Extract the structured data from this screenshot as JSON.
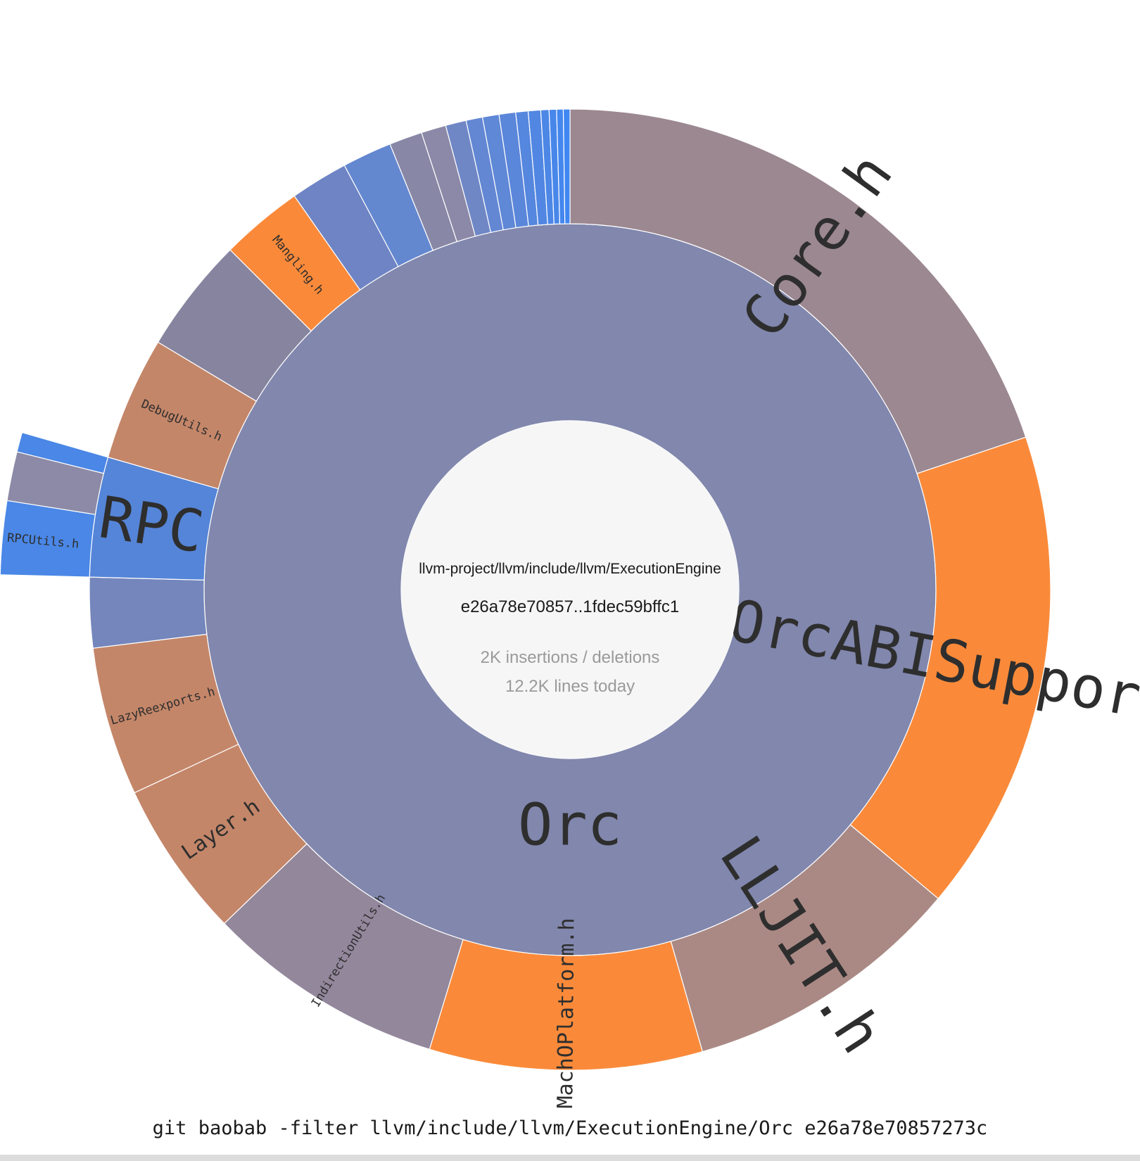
{
  "center": {
    "path": "llvm-project/llvm/include/llvm/ExecutionEngine",
    "range": "e26a78e70857..1fdec59bffc1",
    "stat_changes": "2K insertions / deletions",
    "stat_lines": "12.2K lines today"
  },
  "footer": {
    "command": "git baobab -filter llvm/include/llvm/ExecutionEngine/Orc e26a78e70857273c"
  },
  "colors": {
    "center_bg": "#f6f6f6",
    "orc": "#8187ad",
    "core": "#9c8891",
    "orange": "#fa8a3a",
    "lljit": "#aa8985",
    "indirection": "#93879c",
    "brown": "#c48669",
    "slate": "#7486bc",
    "blue_mid": "#6488d0",
    "blue_bright": "#4a87e6",
    "gray_purple": "#8c8aa6"
  },
  "chart_data": {
    "type": "sunburst",
    "root": "llvm-project/llvm/include/llvm/ExecutionEngine",
    "rings": [
      {
        "level": 1,
        "segments": [
          {
            "name": "Orc",
            "label": "Orc",
            "start_deg": 0,
            "end_deg": 360,
            "color": "#8187ad",
            "label_at_deg": 180
          }
        ]
      },
      {
        "level": 2,
        "segments": [
          {
            "name": "Core.h",
            "label": "Core.h",
            "start_deg": 0,
            "end_deg": 71.5,
            "color": "#9c8891"
          },
          {
            "name": "OrcABISupport.h",
            "label": "OrcABISupport.h",
            "start_deg": 71.5,
            "end_deg": 130,
            "color": "#fa8a3a"
          },
          {
            "name": "LLJIT.h",
            "label": "LLJIT.h",
            "start_deg": 130,
            "end_deg": 164,
            "color": "#aa8985"
          },
          {
            "name": "MachOPlatform.h",
            "label": "MachOPlatform.h",
            "start_deg": 164,
            "end_deg": 197,
            "color": "#fa8a3a"
          },
          {
            "name": "IndirectionUtils.h",
            "label": "IndirectionUtils.h",
            "start_deg": 197,
            "end_deg": 226,
            "color": "#93879c"
          },
          {
            "name": "Layer.h",
            "label": "Layer.h",
            "start_deg": 226,
            "end_deg": 245,
            "color": "#c48669"
          },
          {
            "name": "LazyReexports.h",
            "label": "LazyReexports.h",
            "start_deg": 245,
            "end_deg": 263,
            "color": "#c48669"
          },
          {
            "name": "segment-unlabeled-1",
            "label": "",
            "start_deg": 263,
            "end_deg": 271.5,
            "color": "#7486bc"
          },
          {
            "name": "RPC",
            "label": "RPC",
            "start_deg": 271.5,
            "end_deg": 286,
            "color": "#5585d8"
          },
          {
            "name": "DebugUtils.h",
            "label": "DebugUtils.h",
            "start_deg": 286,
            "end_deg": 301,
            "color": "#c48669"
          },
          {
            "name": "segment-unlabeled-2",
            "label": "",
            "start_deg": 301,
            "end_deg": 315,
            "color": "#86849f"
          },
          {
            "name": "Mangling.h",
            "label": "Mangling.h",
            "start_deg": 315,
            "end_deg": 325,
            "color": "#fa8a3a"
          },
          {
            "name": "segment-unlabeled-3",
            "label": "",
            "start_deg": 325,
            "end_deg": 332,
            "color": "#6e84c4"
          },
          {
            "name": "segment-unlabeled-4",
            "label": "",
            "start_deg": 332,
            "end_deg": 338,
            "color": "#6488d0"
          },
          {
            "name": "segment-unlabeled-5",
            "label": "",
            "start_deg": 338,
            "end_deg": 342,
            "color": "#8987a6"
          },
          {
            "name": "segment-unlabeled-6",
            "label": "",
            "start_deg": 342,
            "end_deg": 345,
            "color": "#8b89a7"
          },
          {
            "name": "segment-unlabeled-7",
            "label": "",
            "start_deg": 345,
            "end_deg": 347.5,
            "color": "#6f87c5"
          },
          {
            "name": "segment-unlabeled-8",
            "label": "",
            "start_deg": 347.5,
            "end_deg": 349.5,
            "color": "#6387d3"
          },
          {
            "name": "segment-unlabeled-9",
            "label": "",
            "start_deg": 349.5,
            "end_deg": 351.5,
            "color": "#5f88d6"
          },
          {
            "name": "segment-unlabeled-10",
            "label": "",
            "start_deg": 351.5,
            "end_deg": 353.5,
            "color": "#5b87da"
          },
          {
            "name": "segment-unlabeled-11",
            "label": "",
            "start_deg": 353.5,
            "end_deg": 355,
            "color": "#5687de"
          },
          {
            "name": "segment-unlabeled-12",
            "label": "",
            "start_deg": 355,
            "end_deg": 356.5,
            "color": "#5187e2"
          },
          {
            "name": "segment-unlabeled-13",
            "label": "",
            "start_deg": 356.5,
            "end_deg": 357.5,
            "color": "#4c87e6"
          },
          {
            "name": "segment-unlabeled-14",
            "label": "",
            "start_deg": 357.5,
            "end_deg": 358.4,
            "color": "#4887ea"
          },
          {
            "name": "segment-unlabeled-15",
            "label": "",
            "start_deg": 358.4,
            "end_deg": 359.2,
            "color": "#4487ee"
          },
          {
            "name": "segment-unlabeled-16",
            "label": "",
            "start_deg": 359.2,
            "end_deg": 360,
            "color": "#3f87f2"
          }
        ]
      },
      {
        "level": 3,
        "parent": "RPC",
        "segments": [
          {
            "name": "RPCUtils.h",
            "label": "RPCUtils.h",
            "start_deg": 271.5,
            "end_deg": 279,
            "color": "#4a87e6"
          },
          {
            "name": "segment-unlabeled-rpc-2",
            "label": "",
            "start_deg": 279,
            "end_deg": 284,
            "color": "#8c8aa6"
          },
          {
            "name": "segment-unlabeled-rpc-3",
            "label": "",
            "start_deg": 284,
            "end_deg": 286,
            "color": "#4a87e6"
          }
        ]
      }
    ],
    "label_sizes": {
      "Core.h": "large",
      "OrcABISupport.h": "large",
      "LLJIT.h": "large",
      "RPC": "large",
      "Orc": "large",
      "MachOPlatform.h": "medium",
      "Layer.h": "medium",
      "IndirectionUtils.h": "small",
      "LazyReexports.h": "small",
      "DebugUtils.h": "small",
      "Mangling.h": "small",
      "RPCUtils.h": "small"
    }
  }
}
